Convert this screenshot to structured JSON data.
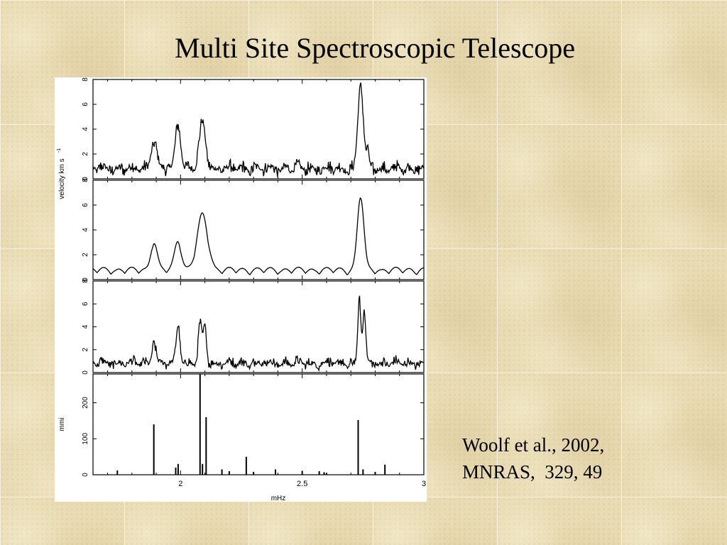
{
  "title": "Multi Site Spectroscopic Telescope",
  "citation": {
    "line1": "Woolf et al., 2002,",
    "line2": "MNRAS,  329, 49"
  },
  "chart_data": [
    {
      "type": "line",
      "panel": 1,
      "xlim": [
        1.64,
        3.0
      ],
      "ylim": [
        0,
        8
      ],
      "yticks": [
        "0",
        "2",
        "4",
        "6",
        "8"
      ],
      "peaks": [
        {
          "x": 1.89,
          "height": 2.2,
          "width": 0.012
        },
        {
          "x": 1.99,
          "height": 3.6,
          "width": 0.011
        },
        {
          "x": 2.09,
          "height": 3.7,
          "width": 0.013
        },
        {
          "x": 2.74,
          "height": 6.8,
          "width": 0.011
        },
        {
          "x": 2.77,
          "height": 1.4,
          "width": 0.005
        }
      ],
      "noise": 0.7
    },
    {
      "type": "line",
      "panel": 2,
      "xlim": [
        1.64,
        3.0
      ],
      "ylim": [
        0,
        8
      ],
      "yticks": [
        "0",
        "2",
        "4",
        "6",
        "8"
      ],
      "ylabel": "velocity km s",
      "peaks": [
        {
          "x": 1.89,
          "height": 2.3,
          "width": 0.013
        },
        {
          "x": 1.99,
          "height": 2.4,
          "width": 0.014
        },
        {
          "x": 2.09,
          "height": 4.4,
          "width": 0.022
        },
        {
          "x": 2.74,
          "height": 6.0,
          "width": 0.013
        }
      ],
      "noise": 0.0
    },
    {
      "type": "line",
      "panel": 3,
      "xlim": [
        1.64,
        3.0
      ],
      "ylim": [
        0,
        8
      ],
      "yticks": [
        "0",
        "2",
        "4",
        "6",
        "8"
      ],
      "peaks": [
        {
          "x": 1.89,
          "height": 1.9,
          "width": 0.008
        },
        {
          "x": 1.99,
          "height": 3.4,
          "width": 0.008
        },
        {
          "x": 2.08,
          "height": 3.3,
          "width": 0.007
        },
        {
          "x": 2.1,
          "height": 3.3,
          "width": 0.007
        },
        {
          "x": 2.735,
          "height": 5.8,
          "width": 0.006
        },
        {
          "x": 2.755,
          "height": 4.6,
          "width": 0.006
        }
      ],
      "noise": 0.6
    },
    {
      "type": "bar",
      "panel": 4,
      "xlim": [
        1.64,
        3.0
      ],
      "ylim": [
        0,
        280
      ],
      "yticks": [
        "0",
        "100",
        "200"
      ],
      "ylabel": "mmi",
      "xticks": [
        {
          "value": 2.0,
          "label": "2"
        },
        {
          "value": 2.5,
          "label": "2.5"
        },
        {
          "value": 3.0,
          "label": "3"
        }
      ],
      "xlabel": "mHz",
      "x": [
        1.74,
        1.89,
        1.98,
        1.99,
        2.08,
        2.09,
        2.105,
        2.17,
        2.2,
        2.27,
        2.3,
        2.39,
        2.5,
        2.57,
        2.59,
        2.6,
        2.73,
        2.75,
        2.8,
        2.84
      ],
      "values": [
        12,
        140,
        20,
        30,
        290,
        30,
        160,
        15,
        10,
        50,
        8,
        15,
        10,
        10,
        7,
        5,
        152,
        15,
        8,
        28
      ]
    }
  ]
}
